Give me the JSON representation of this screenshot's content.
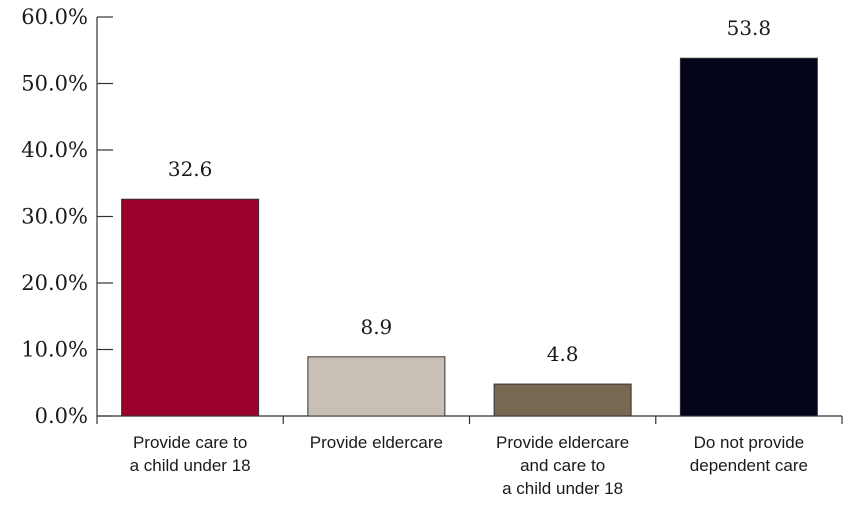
{
  "chart_data": {
    "type": "bar",
    "title": "",
    "xlabel": "",
    "ylabel": "",
    "ylim": [
      0,
      60
    ],
    "yticks": [
      {
        "value": 0,
        "label": "0.0%"
      },
      {
        "value": 10,
        "label": "10.0%"
      },
      {
        "value": 20,
        "label": "20.0%"
      },
      {
        "value": 30,
        "label": "30.0%"
      },
      {
        "value": 40,
        "label": "40.0%"
      },
      {
        "value": 50,
        "label": "50.0%"
      },
      {
        "value": 60,
        "label": "60.0%"
      }
    ],
    "categories": [
      {
        "lines": [
          "Provide care to",
          "a child under 18"
        ]
      },
      {
        "lines": [
          "Provide eldercare"
        ]
      },
      {
        "lines": [
          "Provide eldercare",
          "and care to",
          "a child under 18"
        ]
      },
      {
        "lines": [
          "Do not provide",
          "dependent care"
        ]
      }
    ],
    "values": [
      32.6,
      8.9,
      4.8,
      53.8
    ],
    "value_labels": [
      "32.6",
      "8.9",
      "4.8",
      "53.8"
    ],
    "colors": [
      "#99002b",
      "#c8c0b6",
      "#7a6952",
      "#03031a"
    ],
    "grid": false,
    "legend": "none"
  }
}
